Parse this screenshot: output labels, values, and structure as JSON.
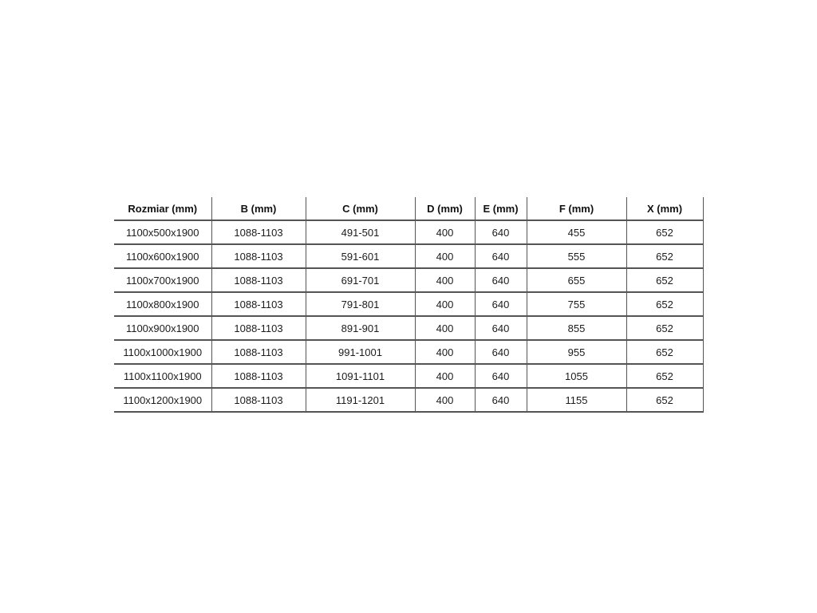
{
  "table": {
    "name": "shower-enclosure-dimensions",
    "columns": [
      {
        "key": "rozmiar",
        "label": "Rozmiar (mm)"
      },
      {
        "key": "b",
        "label": "B (mm)"
      },
      {
        "key": "c",
        "label": "C (mm)"
      },
      {
        "key": "d",
        "label": "D (mm)"
      },
      {
        "key": "e",
        "label": "E (mm)"
      },
      {
        "key": "f",
        "label": "F (mm)"
      },
      {
        "key": "x",
        "label": "X (mm)"
      }
    ],
    "rows": [
      [
        "1100x500x1900",
        "1088-1103",
        "491-501",
        "400",
        "640",
        "455",
        "652"
      ],
      [
        "1100x600x1900",
        "1088-1103",
        "591-601",
        "400",
        "640",
        "555",
        "652"
      ],
      [
        "1100x700x1900",
        "1088-1103",
        "691-701",
        "400",
        "640",
        "655",
        "652"
      ],
      [
        "1100x800x1900",
        "1088-1103",
        "791-801",
        "400",
        "640",
        "755",
        "652"
      ],
      [
        "1100x900x1900",
        "1088-1103",
        "891-901",
        "400",
        "640",
        "855",
        "652"
      ],
      [
        "1100x1000x1900",
        "1088-1103",
        "991-1001",
        "400",
        "640",
        "955",
        "652"
      ],
      [
        "1100x1100x1900",
        "1088-1103",
        "1091-1101",
        "400",
        "640",
        "1055",
        "652"
      ],
      [
        "1100x1200x1900",
        "1088-1103",
        "1191-1201",
        "400",
        "640",
        "1155",
        "652"
      ]
    ],
    "colors": {
      "border": "#555555",
      "header_text": "#111111",
      "body_text": "#1c1c1c",
      "background": "#ffffff"
    }
  }
}
